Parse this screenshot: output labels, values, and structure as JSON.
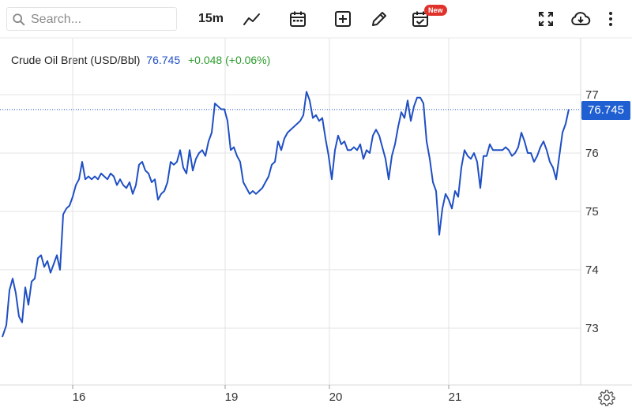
{
  "toolbar": {
    "search_placeholder": "Search...",
    "interval": "15m",
    "new_badge": "New",
    "icons": [
      "search-icon",
      "line-chart-icon",
      "calendar-icon",
      "add-box-icon",
      "pencil-icon",
      "calendar-check-icon",
      "fullscreen-icon",
      "cloud-download-icon",
      "more-vert-icon"
    ]
  },
  "instrument": {
    "name": "Crude Oil Brent (USD/Bbl)",
    "last": "76.745",
    "change": "+0.048 (+0.06%)",
    "price_tag": "76.745"
  },
  "colors": {
    "line": "#1f4fc4",
    "up": "#2e9b2e",
    "price_tag_bg": "#1f5fd1",
    "grid": "#e3e3e3"
  },
  "chart_data": {
    "type": "line",
    "title": "Crude Oil Brent (USD/Bbl)",
    "xlabel": "",
    "ylabel": "",
    "x_ticks": [
      {
        "label": "16",
        "t": 92
      },
      {
        "label": "19",
        "t": 285
      },
      {
        "label": "20",
        "t": 417
      },
      {
        "label": "21",
        "t": 568
      }
    ],
    "y_ticks": [
      73,
      74,
      75,
      76,
      77
    ],
    "ylim": [
      72.04,
      77.35
    ],
    "xlim": [
      0,
      735
    ],
    "grid": true,
    "legend": "none",
    "last_value": 76.745,
    "series": [
      {
        "values": [
          [
            3,
            72.85
          ],
          [
            8,
            73.05
          ],
          [
            12,
            73.65
          ],
          [
            16,
            73.85
          ],
          [
            20,
            73.6
          ],
          [
            24,
            73.2
          ],
          [
            28,
            73.1
          ],
          [
            32,
            73.7
          ],
          [
            36,
            73.4
          ],
          [
            40,
            73.8
          ],
          [
            44,
            73.85
          ],
          [
            48,
            74.2
          ],
          [
            52,
            74.25
          ],
          [
            56,
            74.05
          ],
          [
            60,
            74.15
          ],
          [
            64,
            73.95
          ],
          [
            68,
            74.1
          ],
          [
            72,
            74.25
          ],
          [
            76,
            74.0
          ],
          [
            80,
            74.95
          ],
          [
            84,
            75.05
          ],
          [
            88,
            75.1
          ],
          [
            92,
            75.25
          ],
          [
            96,
            75.45
          ],
          [
            100,
            75.55
          ],
          [
            104,
            75.85
          ],
          [
            108,
            75.55
          ],
          [
            112,
            75.6
          ],
          [
            116,
            75.55
          ],
          [
            120,
            75.6
          ],
          [
            124,
            75.55
          ],
          [
            128,
            75.65
          ],
          [
            132,
            75.6
          ],
          [
            136,
            75.55
          ],
          [
            140,
            75.65
          ],
          [
            144,
            75.6
          ],
          [
            148,
            75.45
          ],
          [
            152,
            75.55
          ],
          [
            156,
            75.45
          ],
          [
            160,
            75.4
          ],
          [
            164,
            75.5
          ],
          [
            168,
            75.3
          ],
          [
            172,
            75.45
          ],
          [
            176,
            75.8
          ],
          [
            180,
            75.85
          ],
          [
            184,
            75.7
          ],
          [
            188,
            75.65
          ],
          [
            192,
            75.5
          ],
          [
            196,
            75.55
          ],
          [
            200,
            75.2
          ],
          [
            204,
            75.3
          ],
          [
            208,
            75.35
          ],
          [
            212,
            75.5
          ],
          [
            216,
            75.85
          ],
          [
            220,
            75.8
          ],
          [
            224,
            75.85
          ],
          [
            228,
            76.05
          ],
          [
            232,
            75.75
          ],
          [
            236,
            75.65
          ],
          [
            240,
            76.05
          ],
          [
            244,
            75.7
          ],
          [
            248,
            75.9
          ],
          [
            252,
            76.0
          ],
          [
            256,
            76.05
          ],
          [
            260,
            75.95
          ],
          [
            264,
            76.2
          ],
          [
            268,
            76.35
          ],
          [
            272,
            76.85
          ],
          [
            276,
            76.8
          ],
          [
            280,
            76.75
          ],
          [
            284,
            76.75
          ],
          [
            288,
            76.55
          ],
          [
            292,
            76.05
          ],
          [
            296,
            76.1
          ],
          [
            300,
            75.95
          ],
          [
            304,
            75.85
          ],
          [
            308,
            75.5
          ],
          [
            312,
            75.4
          ],
          [
            316,
            75.3
          ],
          [
            320,
            75.35
          ],
          [
            324,
            75.3
          ],
          [
            328,
            75.35
          ],
          [
            332,
            75.4
          ],
          [
            336,
            75.5
          ],
          [
            340,
            75.6
          ],
          [
            344,
            75.8
          ],
          [
            348,
            75.85
          ],
          [
            352,
            76.2
          ],
          [
            356,
            76.05
          ],
          [
            360,
            76.25
          ],
          [
            364,
            76.35
          ],
          [
            368,
            76.4
          ],
          [
            372,
            76.45
          ],
          [
            376,
            76.5
          ],
          [
            380,
            76.55
          ],
          [
            384,
            76.65
          ],
          [
            388,
            77.05
          ],
          [
            392,
            76.9
          ],
          [
            396,
            76.6
          ],
          [
            400,
            76.65
          ],
          [
            404,
            76.55
          ],
          [
            408,
            76.6
          ],
          [
            412,
            76.25
          ],
          [
            416,
            75.95
          ],
          [
            420,
            75.55
          ],
          [
            424,
            76.05
          ],
          [
            428,
            76.3
          ],
          [
            432,
            76.15
          ],
          [
            436,
            76.2
          ],
          [
            440,
            76.05
          ],
          [
            444,
            76.05
          ],
          [
            448,
            76.1
          ],
          [
            452,
            76.05
          ],
          [
            456,
            76.15
          ],
          [
            460,
            75.9
          ],
          [
            464,
            76.05
          ],
          [
            468,
            76.0
          ],
          [
            472,
            76.3
          ],
          [
            476,
            76.4
          ],
          [
            480,
            76.3
          ],
          [
            484,
            76.1
          ],
          [
            488,
            75.9
          ],
          [
            492,
            75.55
          ],
          [
            496,
            75.95
          ],
          [
            500,
            76.15
          ],
          [
            504,
            76.45
          ],
          [
            508,
            76.7
          ],
          [
            512,
            76.6
          ],
          [
            516,
            76.9
          ],
          [
            520,
            76.55
          ],
          [
            524,
            76.8
          ],
          [
            528,
            76.95
          ],
          [
            532,
            76.95
          ],
          [
            536,
            76.85
          ],
          [
            540,
            76.2
          ],
          [
            544,
            75.9
          ],
          [
            548,
            75.5
          ],
          [
            552,
            75.35
          ],
          [
            556,
            74.6
          ],
          [
            560,
            75.05
          ],
          [
            564,
            75.3
          ],
          [
            568,
            75.2
          ],
          [
            572,
            75.05
          ],
          [
            576,
            75.35
          ],
          [
            580,
            75.25
          ],
          [
            584,
            75.75
          ],
          [
            588,
            76.05
          ],
          [
            592,
            75.95
          ],
          [
            596,
            75.9
          ],
          [
            600,
            76.0
          ],
          [
            604,
            75.85
          ],
          [
            608,
            75.4
          ],
          [
            612,
            75.95
          ],
          [
            616,
            75.95
          ],
          [
            620,
            76.15
          ],
          [
            624,
            76.05
          ],
          [
            628,
            76.05
          ],
          [
            632,
            76.05
          ],
          [
            636,
            76.05
          ],
          [
            640,
            76.1
          ],
          [
            644,
            76.05
          ],
          [
            648,
            75.95
          ],
          [
            652,
            76.0
          ],
          [
            656,
            76.1
          ],
          [
            660,
            76.35
          ],
          [
            664,
            76.2
          ],
          [
            668,
            76.0
          ],
          [
            672,
            76.0
          ],
          [
            676,
            75.85
          ],
          [
            680,
            75.95
          ],
          [
            684,
            76.1
          ],
          [
            688,
            76.2
          ],
          [
            692,
            76.05
          ],
          [
            696,
            75.85
          ],
          [
            700,
            75.75
          ],
          [
            704,
            75.55
          ],
          [
            708,
            75.95
          ],
          [
            712,
            76.35
          ],
          [
            716,
            76.5
          ],
          [
            720,
            76.75
          ]
        ]
      }
    ]
  }
}
